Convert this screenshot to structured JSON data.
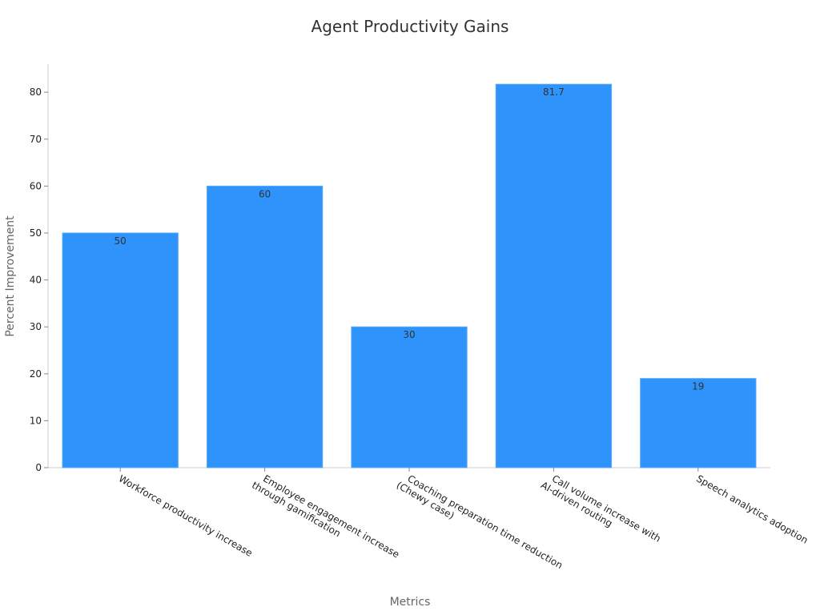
{
  "chart_data": {
    "type": "bar",
    "title": "Agent Productivity Gains",
    "xlabel": "Metrics",
    "ylabel": "Percent Improvement",
    "categories": [
      [
        "Workforce productivity increase"
      ],
      [
        "Employee engagement increase",
        "through gamification"
      ],
      [
        "Coaching preparation time reduction",
        "(Chewy case)"
      ],
      [
        "Call volume increase with",
        "AI-driven routing"
      ],
      [
        "Speech analytics adoption"
      ]
    ],
    "values": [
      50,
      60,
      30,
      81.7,
      19
    ],
    "data_labels": [
      "50",
      "60",
      "30",
      "81.7",
      "19"
    ],
    "y_ticks": [
      0,
      10,
      20,
      30,
      40,
      50,
      60,
      70,
      80
    ],
    "ylim": [
      0,
      86
    ],
    "bar_color": "#2e93fa",
    "grid": false,
    "legend": "none"
  }
}
